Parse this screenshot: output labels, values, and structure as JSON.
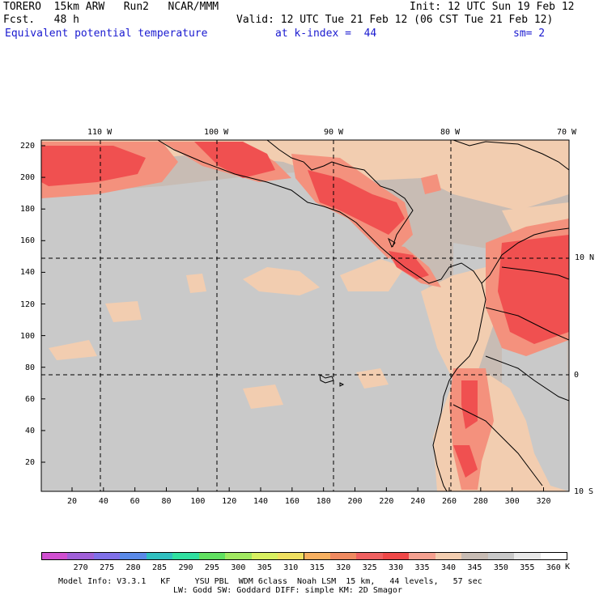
{
  "header": {
    "model": "TORERO  15km ARW   Run2   NCAR/MMM",
    "init": "Init: 12 UTC Sun 19 Feb 12",
    "fcst": "Fcst.   48 h",
    "valid": "Valid: 12 UTC Tue 21 Feb 12 (06 CST Tue 21 Feb 12)",
    "field": "Equivalent potential temperature",
    "level": "at k-index =  44",
    "smoothing": "sm= 2"
  },
  "map": {
    "lon_labels": [
      "110 W",
      "100 W",
      "90 W",
      "80 W",
      "70 W"
    ],
    "lat_labels": [
      "10 N",
      "0",
      "10 S"
    ],
    "y_ticks": [
      "20",
      "40",
      "60",
      "80",
      "100",
      "120",
      "140",
      "160",
      "180",
      "200",
      "220"
    ],
    "x_ticks": [
      "20",
      "40",
      "60",
      "80",
      "100",
      "120",
      "140",
      "160",
      "180",
      "200",
      "220",
      "240",
      "260",
      "280",
      "300",
      "320"
    ],
    "colors": {
      "background_fill": "#c8bcb4",
      "cool_band": "#c9c9c9",
      "warm_band": "#f2cdb0",
      "hot_band": "#f4917d",
      "hottest_band": "#f05050",
      "coastline": "#000000"
    }
  },
  "colorbar": {
    "labels": [
      "270",
      "275",
      "280",
      "285",
      "290",
      "295",
      "300",
      "305",
      "310",
      "315",
      "320",
      "325",
      "330",
      "335",
      "340",
      "345",
      "350",
      "355",
      "360"
    ],
    "unit": "K",
    "colors": [
      "#d04fd0",
      "#a05fd8",
      "#8070e8",
      "#5a8ae8",
      "#30c0c0",
      "#30e0a0",
      "#60e060",
      "#a0e860",
      "#d8f060",
      "#f0e060",
      "#f8b060",
      "#f08a60",
      "#f06060",
      "#f04848",
      "#f4a090",
      "#f2cdb0",
      "#c8bcb4",
      "#c9c9c9",
      "#e8e8e8",
      "#ffffff"
    ]
  },
  "footer": {
    "line1": "Model Info: V3.3.1   KF     YSU PBL  WDM 6class  Noah LSM  15 km,   44 levels,   57 sec",
    "line2": "LW: Godd SW: Goddard DIFF: simple KM: 2D Smagor"
  }
}
